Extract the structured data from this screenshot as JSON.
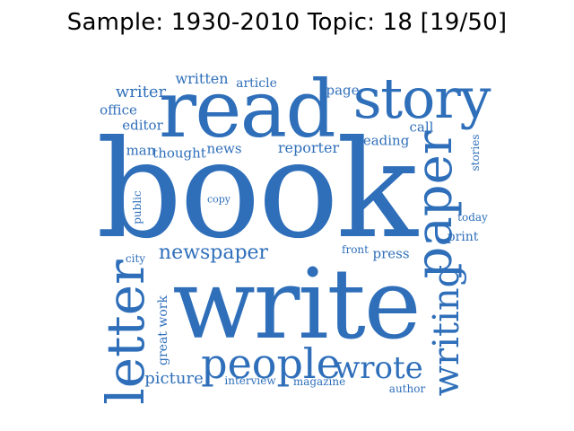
{
  "title": "Sample: 1930-2010 Topic: 18 [19/50]",
  "color": "#2f6fba",
  "words": [
    "book",
    "write",
    "read",
    "story",
    "paper",
    "letter",
    "people",
    "wrote",
    "writing",
    "newspaper",
    "writer",
    "written",
    "article",
    "page",
    "office",
    "editor",
    "reading",
    "call",
    "man",
    "thought",
    "news",
    "reporter",
    "stories",
    "copy",
    "public",
    "today",
    "print",
    "front",
    "press",
    "city",
    "great work",
    "picture",
    "interview",
    "magazine",
    "author"
  ]
}
